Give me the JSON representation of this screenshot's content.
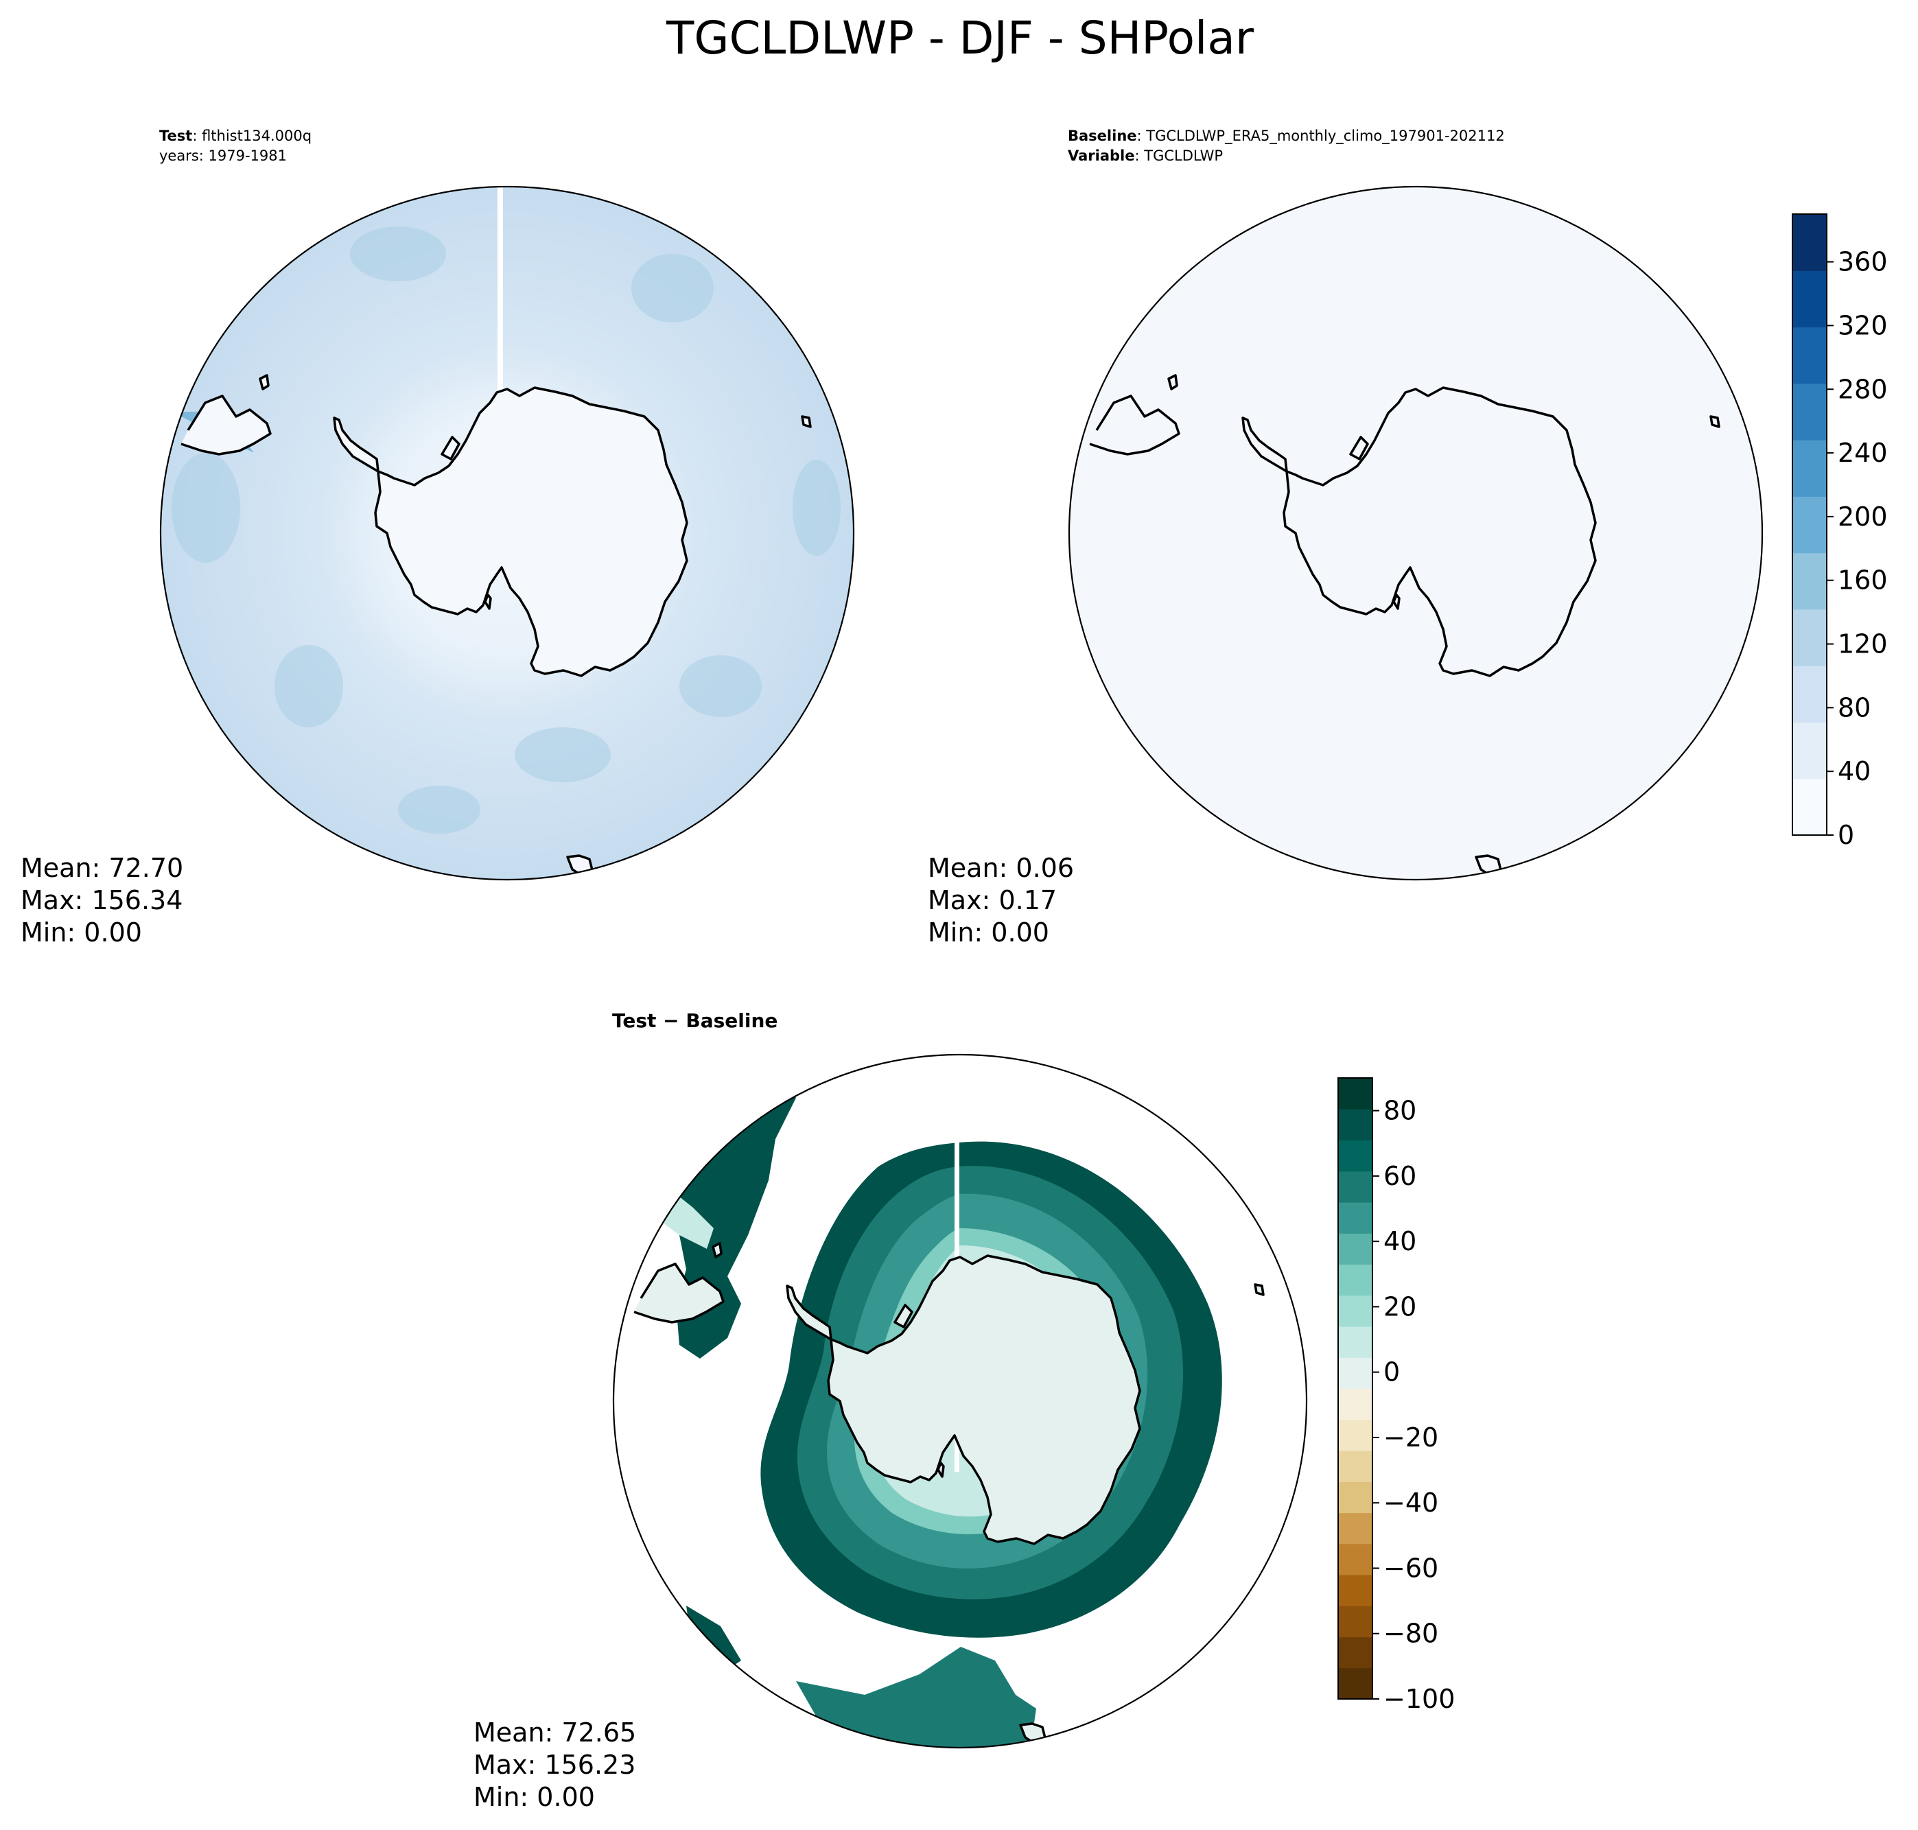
{
  "figure": {
    "title": "TGCLDLWP - DJF - SHPolar"
  },
  "panels": {
    "test": {
      "label_key": "Test",
      "label_value": ": flthist134.000q",
      "years": "years: 1979-1981",
      "stats": {
        "mean": "Mean: 72.70",
        "max": "Max: 156.34",
        "min": "Min:  0.00"
      }
    },
    "baseline": {
      "label_key": "Baseline",
      "label_value": ": TGCLDLWP_ERA5_monthly_climo_197901-202112",
      "var_key": "Variable",
      "var_value": ": TGCLDLWP",
      "stats": {
        "mean": "Mean:  0.06",
        "max": "Max:  0.17",
        "min": "Min:  0.00"
      }
    },
    "diff": {
      "label_a": "Test",
      "label_sep": " − ",
      "label_b": "Baseline",
      "stats": {
        "mean": "Mean: 72.65",
        "max": "Max: 156.23",
        "min": "Min:  0.00"
      }
    }
  },
  "colorbars": {
    "top": {
      "ticks": [
        "0",
        "40",
        "80",
        "120",
        "160",
        "200",
        "240",
        "280",
        "320",
        "360"
      ],
      "range": [
        0,
        390
      ],
      "colors": [
        "#f7fbff",
        "#e3eef9",
        "#cfe1f2",
        "#b5d4e9",
        "#93c4de",
        "#6aaed6",
        "#4a98c9",
        "#2e7ebc",
        "#1764ab",
        "#084a91",
        "#08306b"
      ]
    },
    "bottom": {
      "ticks": [
        "−100",
        "−80",
        "−60",
        "−40",
        "−20",
        "0",
        "20",
        "40",
        "60",
        "80"
      ],
      "range": [
        -100,
        90
      ],
      "colors": [
        "#543005",
        "#6d3d07",
        "#8c510a",
        "#a5620f",
        "#bf812d",
        "#cf9d4f",
        "#dfc27d",
        "#e9d49f",
        "#f2e6c4",
        "#f6efdd",
        "#e5f1ee",
        "#c7eae5",
        "#a2ddd4",
        "#80cdc1",
        "#5ab4a9",
        "#35978f",
        "#1b7b72",
        "#01665e",
        "#00524a",
        "#003c30"
      ]
    }
  }
}
